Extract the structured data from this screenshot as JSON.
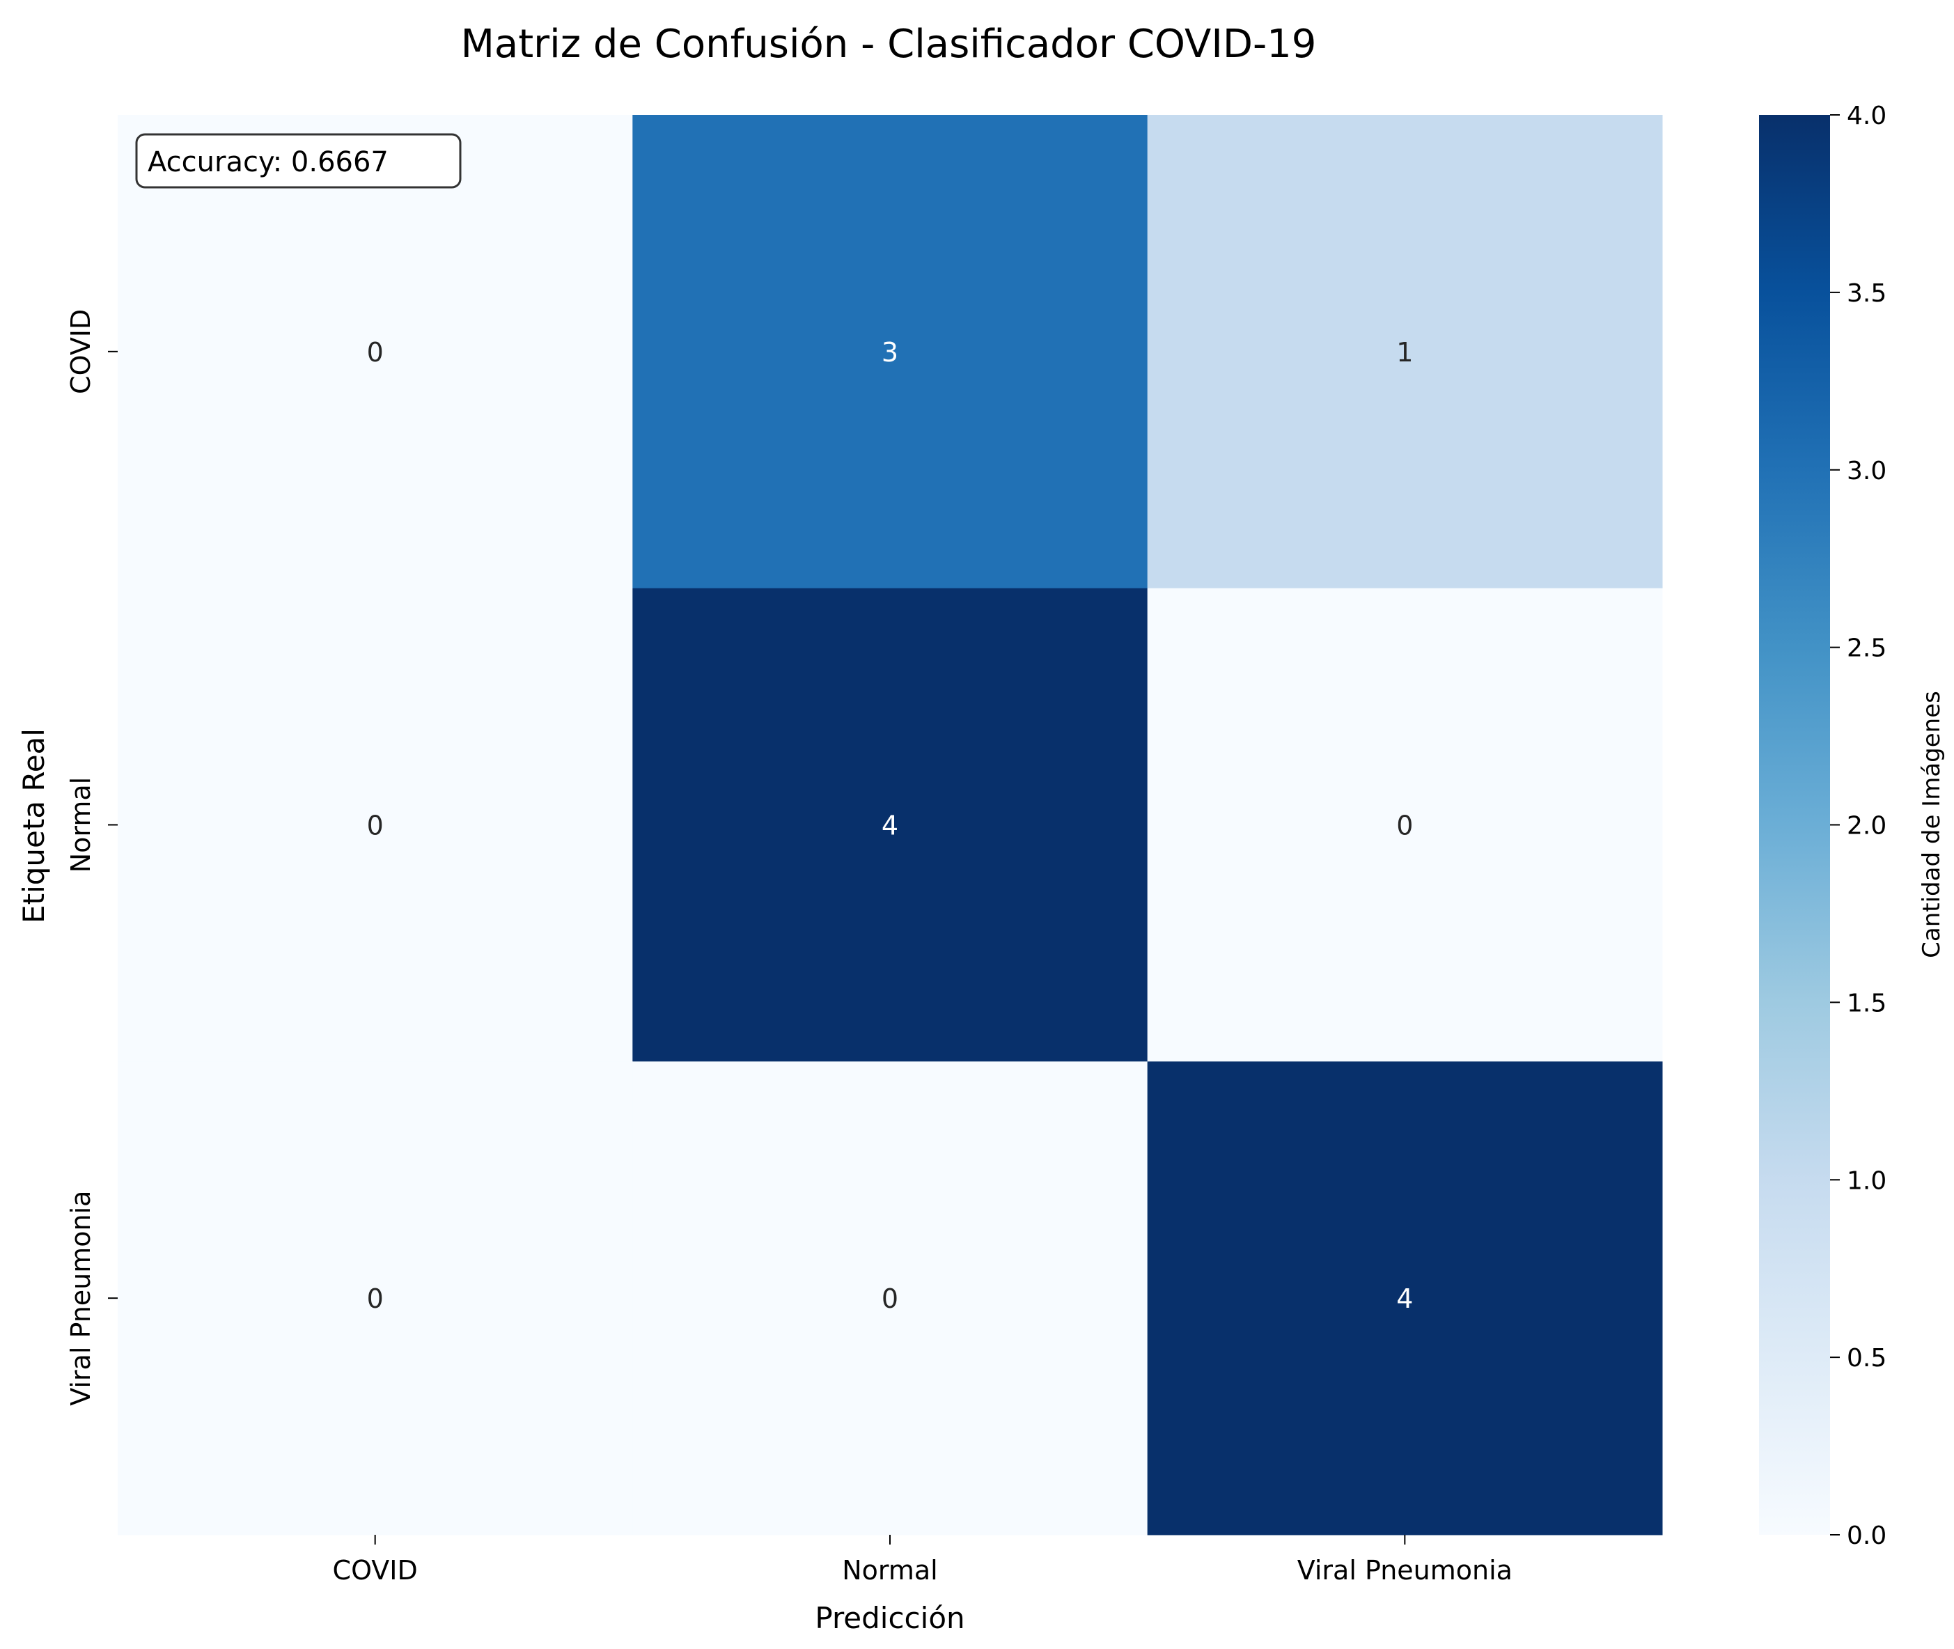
{
  "chart_data": {
    "type": "heatmap",
    "title": "Matriz de Confusión - Clasificador COVID-19",
    "xlabel": "Predicción",
    "ylabel": "Etiqueta Real",
    "x_categories": [
      "COVID",
      "Normal",
      "Viral Pneumonia"
    ],
    "y_categories": [
      "COVID",
      "Normal",
      "Viral Pneumonia"
    ],
    "values": [
      [
        0,
        3,
        1
      ],
      [
        0,
        4,
        0
      ],
      [
        0,
        0,
        4
      ]
    ],
    "colorbar": {
      "label": "Cantidad de Imágenes",
      "range": [
        0.0,
        4.0
      ],
      "ticks": [
        "0.0",
        "0.5",
        "1.0",
        "1.5",
        "2.0",
        "2.5",
        "3.0",
        "3.5",
        "4.0"
      ],
      "colormap": "Blues",
      "colors": [
        "#f7fbff",
        "#deebf7",
        "#c6dbef",
        "#9ecae1",
        "#6baed6",
        "#4292c6",
        "#2171b5",
        "#08519c",
        "#08306b"
      ]
    },
    "annotation": "Accuracy: 0.6667",
    "grid": false
  }
}
